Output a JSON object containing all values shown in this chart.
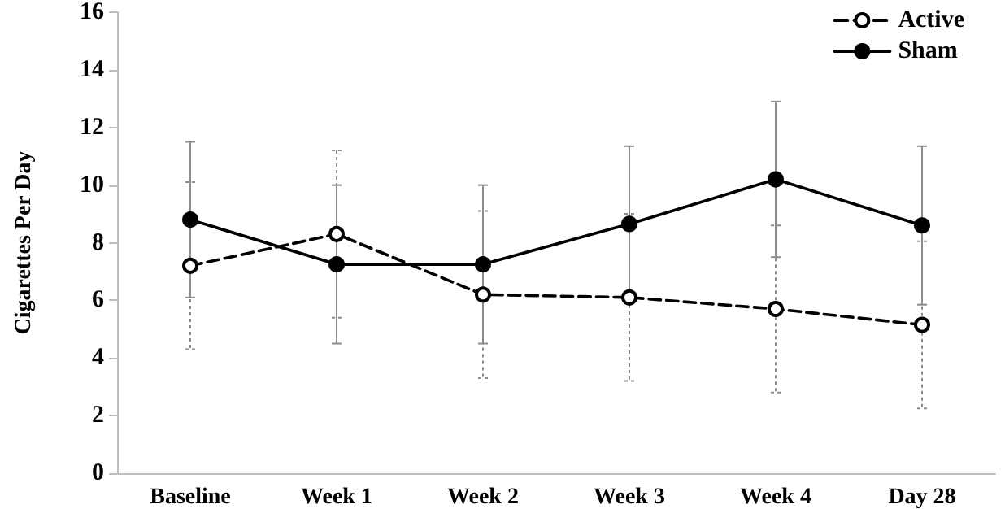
{
  "chart_data": {
    "type": "line",
    "ylabel": "Cigarettes Per Day",
    "categories": [
      "Baseline",
      "Week 1",
      "Week 2",
      "Week 3",
      "Week 4",
      "Day 28"
    ],
    "series": [
      {
        "name": "Active",
        "color": "#000000",
        "line_style": "dashed",
        "values": [
          7.2,
          8.3,
          6.2,
          6.1,
          5.7,
          5.15
        ],
        "errors": [
          2.9,
          2.9,
          2.9,
          2.9,
          2.9,
          2.9
        ]
      },
      {
        "name": "Sham",
        "color": "#000000",
        "line_style": "solid",
        "values": [
          8.8,
          7.25,
          7.25,
          8.65,
          10.2,
          8.6
        ],
        "errors": [
          2.7,
          2.75,
          2.75,
          2.7,
          2.7,
          2.75
        ]
      }
    ],
    "marker": "circle",
    "ylim": [
      0,
      16
    ],
    "yticks": [
      0,
      2,
      4,
      6,
      8,
      10,
      12,
      14,
      16
    ],
    "grid": false,
    "legend": "top right"
  }
}
